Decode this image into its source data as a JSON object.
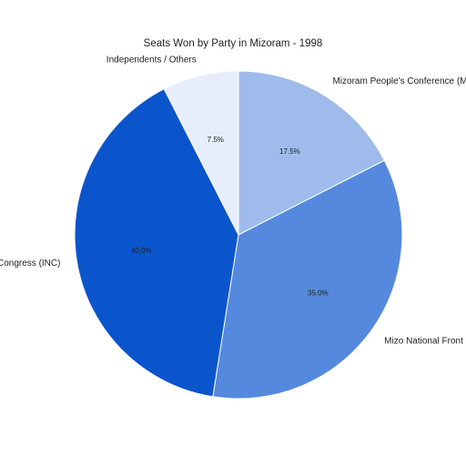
{
  "chart_data": {
    "type": "pie",
    "title": "Seats Won by Party in Mizoram - 1998",
    "categories": [
      "Mizoram People's Conference (MPC)",
      "Mizo National Front (MNF)",
      "Indian National Congress (INC)",
      "Independents / Others"
    ],
    "values": [
      17.5,
      35.0,
      40.0,
      7.5
    ],
    "value_labels": [
      "17.5%",
      "35.0%",
      "40.0%",
      "7.5%"
    ],
    "colors": [
      "#9ebbeb",
      "#5589dd",
      "#0b55cc",
      "#e7edfa"
    ],
    "start_angle_deg": 90,
    "direction": "clockwise",
    "legend": "none"
  }
}
